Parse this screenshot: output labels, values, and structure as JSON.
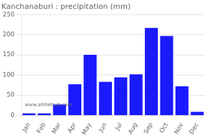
{
  "chart_data": {
    "type": "bar",
    "title": "Kanchanaburi : precipitation (mm)",
    "categories": [
      "Jan",
      "Feb",
      "Mar",
      "Apr",
      "May",
      "Jun",
      "Jul",
      "Aug",
      "Sep",
      "Oct",
      "Nov",
      "Dec"
    ],
    "values": [
      5,
      5,
      27,
      77,
      150,
      83,
      94,
      102,
      217,
      197,
      72,
      9
    ],
    "color": "#1a1aff",
    "ylim": [
      0,
      250
    ],
    "yticks": [
      0,
      50,
      100,
      150,
      200,
      250
    ],
    "grid": true,
    "annotations": [
      {
        "text": "www.allmetsat.com"
      }
    ]
  }
}
